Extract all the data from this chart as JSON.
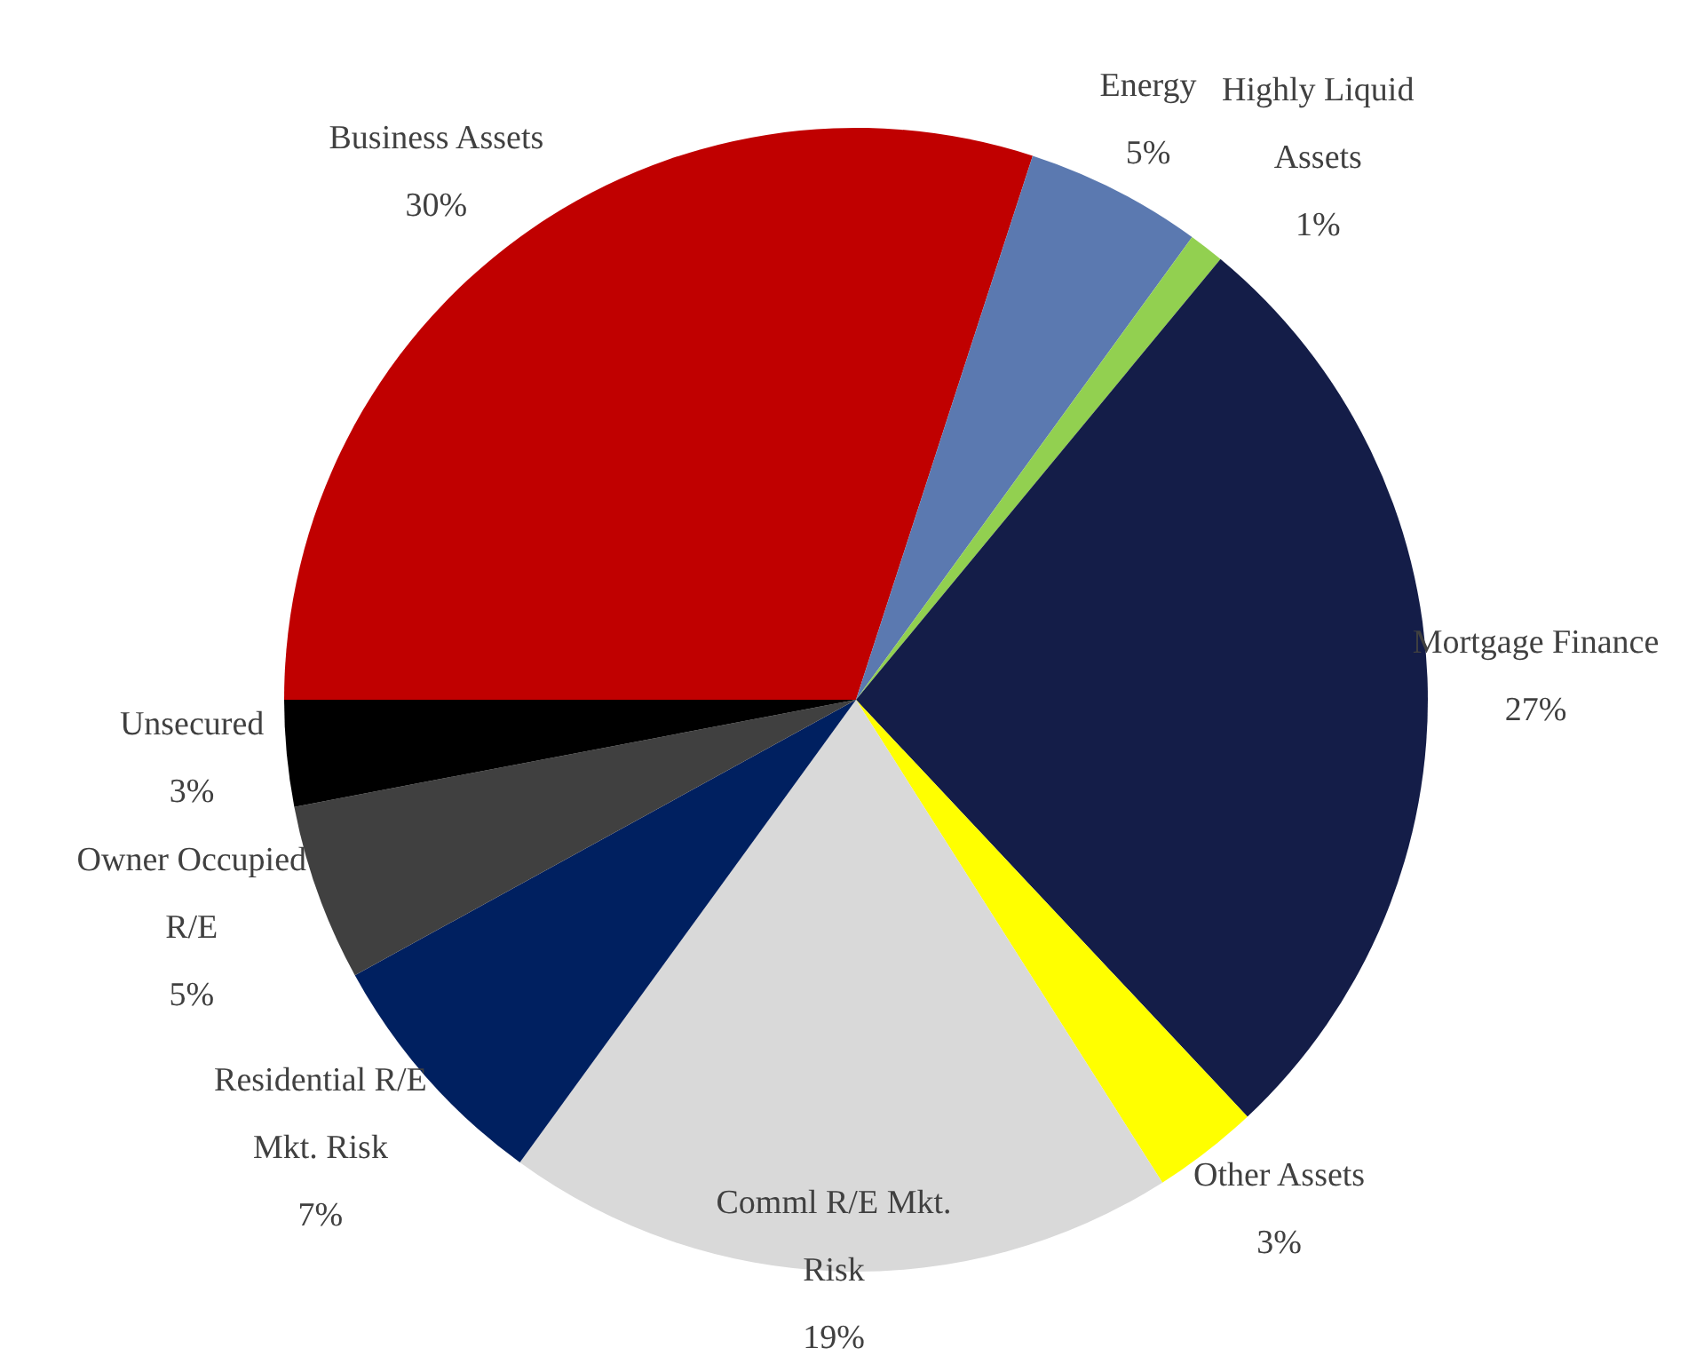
{
  "chart_data": {
    "type": "pie",
    "categories": [
      "Business Assets",
      "Energy",
      "Highly Liquid Assets",
      "Mortgage Finance",
      "Other Assets",
      "Comml R/E Mkt. Risk",
      "Residential R/E Mkt. Risk",
      "Owner Occupied R/E",
      "Unsecured"
    ],
    "values": [
      30,
      5,
      1,
      27,
      3,
      19,
      7,
      5,
      3
    ],
    "colors": [
      "#c00000",
      "#5b79b0",
      "#92d050",
      "#141d48",
      "#ffff00",
      "#d9d9d9",
      "#002060",
      "#404040",
      "#000000"
    ],
    "value_labels": [
      "30%",
      "5%",
      "1%",
      "27%",
      "3%",
      "19%",
      "7%",
      "5%",
      "3%"
    ],
    "legend": false
  }
}
